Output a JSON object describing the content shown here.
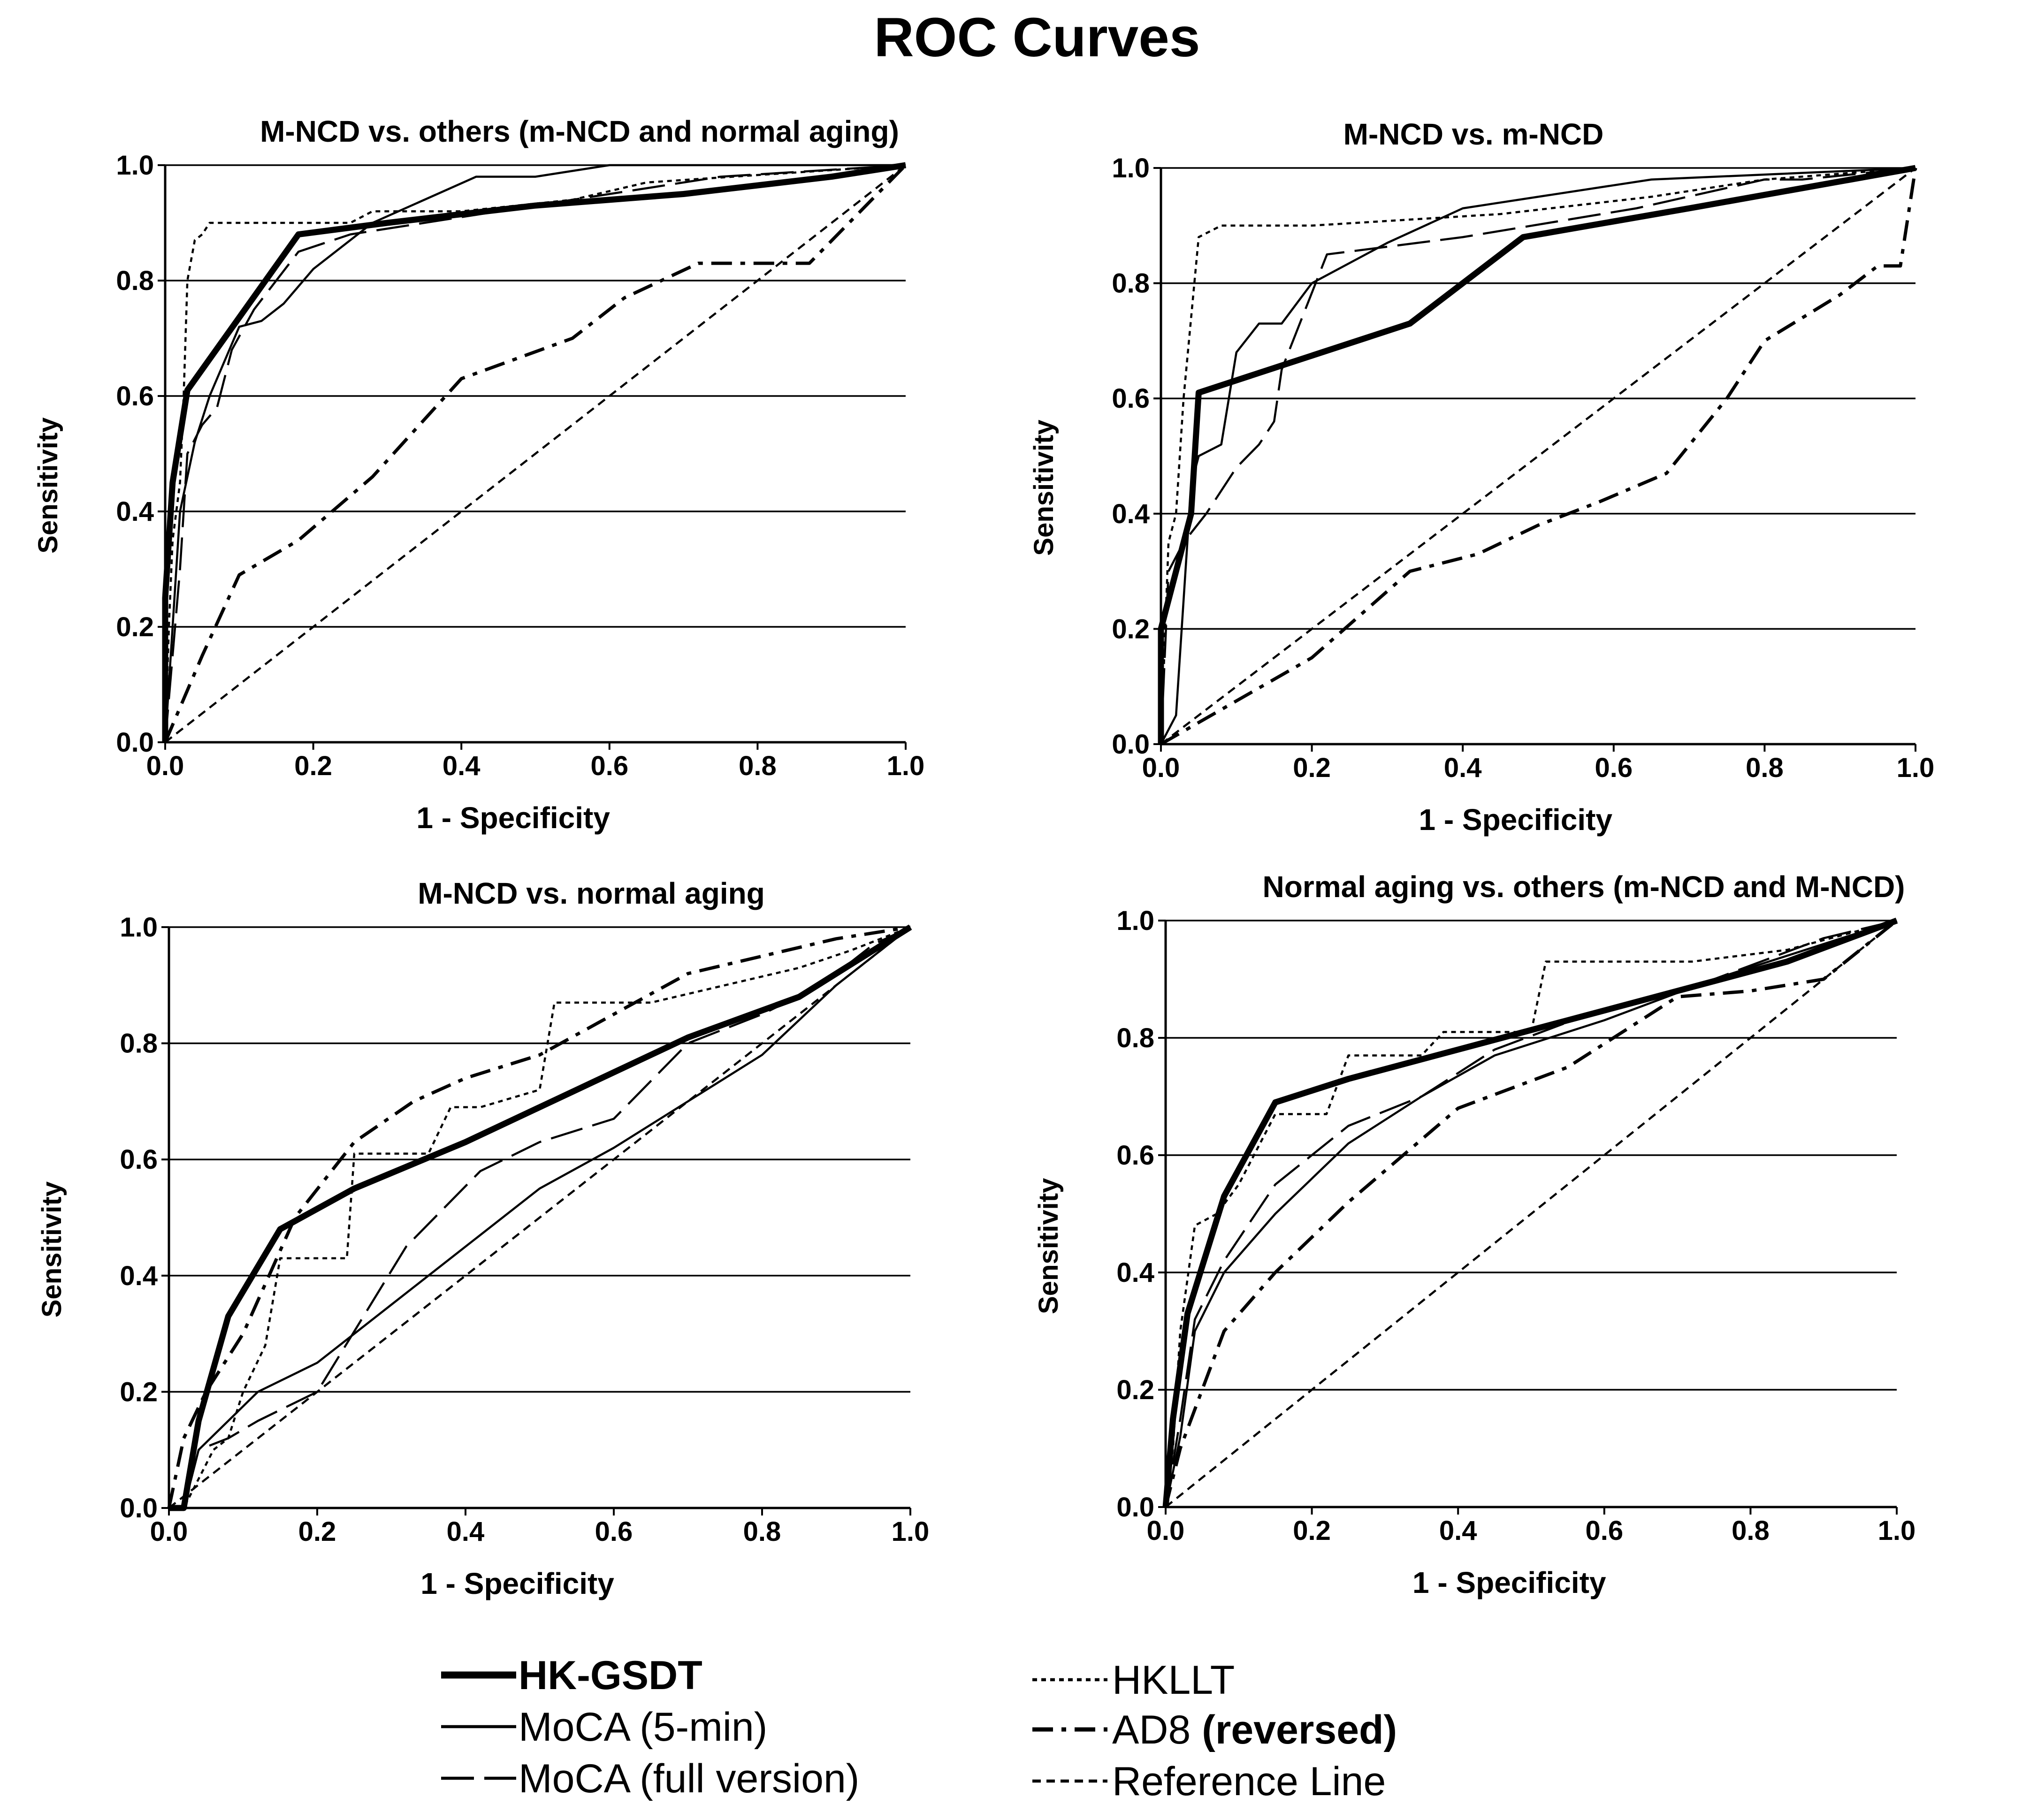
{
  "chart_data": {
    "type": "line",
    "title": "ROC Curves",
    "series_styles": [
      {
        "name": "HK-GSDT",
        "dash": "none",
        "weight": "thick"
      },
      {
        "name": "MoCA (5-min)",
        "dash": "none",
        "weight": "thin"
      },
      {
        "name": "MoCA (full version)",
        "dash": "long-dash",
        "weight": "thin"
      },
      {
        "name": "HKLLT",
        "dash": "dotted",
        "weight": "thin"
      },
      {
        "name": "AD8 (reversed)",
        "dash": "dash-dot",
        "weight": "medium"
      },
      {
        "name": "Reference Line",
        "dash": "short-dash",
        "weight": "thin"
      }
    ],
    "legend": {
      "position": "bottom",
      "items": [
        {
          "label": "HK-GSDT",
          "suffix": ""
        },
        {
          "label": "MoCA (5-min)",
          "suffix": ""
        },
        {
          "label": "MoCA (full version)",
          "suffix": ""
        },
        {
          "label": "HKLLT",
          "suffix": ""
        },
        {
          "label": "AD8",
          "suffix": "(reversed)"
        },
        {
          "label": "Reference Line",
          "suffix": ""
        }
      ]
    },
    "panels": [
      {
        "title": "M-NCD  vs. others (m-NCD and normal aging)",
        "xlabel": "1 - Specificity",
        "ylabel": "Sensitivity",
        "xlim": [
          0,
          1
        ],
        "ylim": [
          0,
          1
        ],
        "xticks": [
          "0.0",
          "0.2",
          "0.4",
          "0.6",
          "0.8",
          "1.0"
        ],
        "yticks": [
          "0.0",
          "0.2",
          "0.4",
          "0.6",
          "0.8",
          "1.0"
        ],
        "grid": "horizontal",
        "series": [
          {
            "name": "HK-GSDT",
            "x": [
              0,
              0,
              0.01,
              0.03,
              0.08,
              0.18,
              0.3,
              0.5,
              0.7,
              0.9,
              1
            ],
            "y": [
              0,
              0.25,
              0.45,
              0.61,
              0.7,
              0.88,
              0.9,
              0.93,
              0.95,
              0.98,
              1
            ]
          },
          {
            "name": "MoCA (5-min)",
            "x": [
              0,
              0.01,
              0.02,
              0.04,
              0.06,
              0.1,
              0.13,
              0.16,
              0.2,
              0.28,
              0.42,
              0.5,
              0.6,
              0.8,
              1
            ],
            "y": [
              0,
              0.2,
              0.4,
              0.52,
              0.6,
              0.72,
              0.73,
              0.76,
              0.82,
              0.9,
              0.98,
              0.98,
              1,
              1,
              1
            ]
          },
          {
            "name": "MoCA (full version)",
            "x": [
              0,
              0.01,
              0.02,
              0.03,
              0.05,
              0.07,
              0.09,
              0.12,
              0.18,
              0.25,
              0.35,
              0.55,
              0.75,
              1
            ],
            "y": [
              0,
              0.15,
              0.3,
              0.5,
              0.55,
              0.58,
              0.68,
              0.75,
              0.85,
              0.88,
              0.9,
              0.94,
              0.98,
              1
            ]
          },
          {
            "name": "HKLLT",
            "x": [
              0,
              0.005,
              0.01,
              0.02,
              0.025,
              0.03,
              0.04,
              0.05,
              0.06,
              0.08,
              0.25,
              0.28,
              0.4,
              0.55,
              0.65,
              1
            ],
            "y": [
              0,
              0.2,
              0.35,
              0.45,
              0.6,
              0.8,
              0.87,
              0.88,
              0.9,
              0.9,
              0.9,
              0.92,
              0.92,
              0.94,
              0.97,
              1
            ]
          },
          {
            "name": "AD8 (reversed)",
            "x": [
              0,
              0.05,
              0.1,
              0.18,
              0.28,
              0.4,
              0.55,
              0.62,
              0.72,
              0.87,
              1
            ],
            "y": [
              0,
              0.15,
              0.29,
              0.35,
              0.46,
              0.63,
              0.7,
              0.77,
              0.83,
              0.83,
              1
            ]
          },
          {
            "name": "Reference Line",
            "x": [
              0,
              1
            ],
            "y": [
              0,
              1
            ]
          }
        ]
      },
      {
        "title": "M-NCD vs. m-NCD",
        "xlabel": "1 - Specificity",
        "ylabel": "Sensitivity",
        "xlim": [
          0,
          1
        ],
        "ylim": [
          0,
          1
        ],
        "xticks": [
          "0.0",
          "0.2",
          "0.4",
          "0.6",
          "0.8",
          "1.0"
        ],
        "yticks": [
          "0.0",
          "0.2",
          "0.4",
          "0.6",
          "0.8",
          "1.0"
        ],
        "grid": "horizontal",
        "series": [
          {
            "name": "HK-GSDT",
            "x": [
              0,
              0,
              0.02,
              0.04,
              0.05,
              0.33,
              0.48,
              0.7,
              1
            ],
            "y": [
              0,
              0.2,
              0.3,
              0.4,
              0.61,
              0.73,
              0.88,
              0.93,
              1
            ]
          },
          {
            "name": "MoCA (5-min)",
            "x": [
              0,
              0.02,
              0.04,
              0.05,
              0.08,
              0.1,
              0.13,
              0.16,
              0.2,
              0.3,
              0.4,
              0.5,
              0.65,
              1
            ],
            "y": [
              0,
              0.05,
              0.45,
              0.5,
              0.52,
              0.68,
              0.73,
              0.73,
              0.8,
              0.87,
              0.93,
              0.95,
              0.98,
              1
            ]
          },
          {
            "name": "MoCA (full version)",
            "x": [
              0,
              0.01,
              0.03,
              0.06,
              0.1,
              0.13,
              0.15,
              0.16,
              0.22,
              0.4,
              0.63,
              0.8,
              0.85,
              1
            ],
            "y": [
              0,
              0.3,
              0.35,
              0.4,
              0.48,
              0.52,
              0.56,
              0.65,
              0.85,
              0.88,
              0.93,
              0.98,
              0.98,
              1
            ]
          },
          {
            "name": "HKLLT",
            "x": [
              0,
              0.01,
              0.02,
              0.03,
              0.05,
              0.08,
              0.2,
              0.45,
              0.65,
              0.8,
              1
            ],
            "y": [
              0,
              0.35,
              0.4,
              0.6,
              0.88,
              0.9,
              0.9,
              0.92,
              0.95,
              0.98,
              1
            ]
          },
          {
            "name": "AD8 (reversed)",
            "x": [
              0,
              0.08,
              0.2,
              0.33,
              0.42,
              0.5,
              0.58,
              0.67,
              0.75,
              0.8,
              0.9,
              0.95,
              0.98,
              1
            ],
            "y": [
              0,
              0.06,
              0.15,
              0.3,
              0.33,
              0.38,
              0.42,
              0.47,
              0.6,
              0.7,
              0.78,
              0.83,
              0.83,
              1
            ]
          },
          {
            "name": "Reference Line",
            "x": [
              0,
              1
            ],
            "y": [
              0,
              1
            ]
          }
        ]
      },
      {
        "title": "M-NCD  vs. normal aging",
        "xlabel": "1 - Specificity",
        "ylabel": "Sensitivity",
        "xlim": [
          0,
          1
        ],
        "ylim": [
          0,
          1
        ],
        "xticks": [
          "0.0",
          "0.2",
          "0.4",
          "0.6",
          "0.8",
          "1.0"
        ],
        "yticks": [
          "0.0",
          "0.2",
          "0.4",
          "0.6",
          "0.8",
          "1.0"
        ],
        "grid": "horizontal",
        "series": [
          {
            "name": "HK-GSDT",
            "x": [
              0,
              0.02,
              0.04,
              0.08,
              0.15,
              0.25,
              0.4,
              0.55,
              0.7,
              0.85,
              1
            ],
            "y": [
              0,
              0,
              0.15,
              0.33,
              0.48,
              0.55,
              0.63,
              0.72,
              0.81,
              0.88,
              1
            ]
          },
          {
            "name": "MoCA (5-min)",
            "x": [
              0,
              0.02,
              0.04,
              0.08,
              0.12,
              0.2,
              0.3,
              0.4,
              0.5,
              0.6,
              0.7,
              0.8,
              0.9,
              1
            ],
            "y": [
              0,
              0,
              0.1,
              0.15,
              0.2,
              0.25,
              0.35,
              0.45,
              0.55,
              0.62,
              0.7,
              0.78,
              0.9,
              1
            ]
          },
          {
            "name": "MoCA (full version)",
            "x": [
              0,
              0.02,
              0.04,
              0.08,
              0.12,
              0.2,
              0.32,
              0.42,
              0.5,
              0.6,
              0.7,
              0.8,
              0.88,
              0.95,
              1
            ],
            "y": [
              0,
              0,
              0.1,
              0.12,
              0.15,
              0.2,
              0.45,
              0.58,
              0.63,
              0.67,
              0.8,
              0.85,
              0.9,
              0.97,
              1
            ]
          },
          {
            "name": "HKLLT",
            "x": [
              0,
              0.02,
              0.06,
              0.08,
              0.1,
              0.13,
              0.15,
              0.2,
              0.24,
              0.25,
              0.35,
              0.38,
              0.42,
              0.5,
              0.52,
              0.65,
              0.75,
              0.85,
              0.92,
              1
            ],
            "y": [
              0,
              0,
              0.1,
              0.12,
              0.2,
              0.28,
              0.43,
              0.43,
              0.43,
              0.61,
              0.61,
              0.69,
              0.69,
              0.72,
              0.87,
              0.87,
              0.9,
              0.93,
              0.96,
              1
            ]
          },
          {
            "name": "AD8 (reversed)",
            "x": [
              0,
              0.02,
              0.05,
              0.1,
              0.17,
              0.25,
              0.33,
              0.4,
              0.5,
              0.6,
              0.7,
              0.8,
              0.9,
              1
            ],
            "y": [
              0,
              0.12,
              0.2,
              0.3,
              0.5,
              0.63,
              0.7,
              0.74,
              0.78,
              0.85,
              0.92,
              0.95,
              0.98,
              1
            ]
          },
          {
            "name": "Reference Line",
            "x": [
              0,
              1
            ],
            "y": [
              0,
              1
            ]
          }
        ]
      },
      {
        "title": "Normal aging vs. others (m-NCD and M-NCD)",
        "xlabel": "1 - Specificity",
        "ylabel": "Sensitivity",
        "xlim": [
          0,
          1
        ],
        "ylim": [
          0,
          1
        ],
        "xticks": [
          "0.0",
          "0.2",
          "0.4",
          "0.6",
          "0.8",
          "1.0"
        ],
        "yticks": [
          "0.0",
          "0.2",
          "0.4",
          "0.6",
          "0.8",
          "1.0"
        ],
        "grid": "horizontal",
        "series": [
          {
            "name": "HK-GSDT",
            "x": [
              0,
              0.01,
              0.03,
              0.08,
              0.15,
              0.25,
              0.4,
              0.55,
              0.7,
              0.85,
              1
            ],
            "y": [
              0,
              0.15,
              0.33,
              0.53,
              0.69,
              0.73,
              0.78,
              0.83,
              0.88,
              0.93,
              1
            ]
          },
          {
            "name": "MoCA (5-min)",
            "x": [
              0,
              0.02,
              0.04,
              0.08,
              0.15,
              0.25,
              0.35,
              0.45,
              0.6,
              0.75,
              0.9,
              1
            ],
            "y": [
              0,
              0.12,
              0.3,
              0.4,
              0.5,
              0.62,
              0.7,
              0.77,
              0.83,
              0.9,
              0.96,
              1
            ]
          },
          {
            "name": "MoCA (full version)",
            "x": [
              0,
              0.02,
              0.04,
              0.08,
              0.15,
              0.25,
              0.35,
              0.45,
              0.6,
              0.75,
              0.9,
              1
            ],
            "y": [
              0,
              0.15,
              0.32,
              0.42,
              0.55,
              0.65,
              0.7,
              0.78,
              0.85,
              0.9,
              0.97,
              1
            ]
          },
          {
            "name": "HKLLT",
            "x": [
              0,
              0.01,
              0.02,
              0.04,
              0.07,
              0.1,
              0.15,
              0.22,
              0.25,
              0.32,
              0.35,
              0.38,
              0.5,
              0.52,
              0.65,
              0.72,
              0.85,
              1
            ],
            "y": [
              0,
              0.1,
              0.3,
              0.48,
              0.5,
              0.55,
              0.67,
              0.67,
              0.77,
              0.77,
              0.77,
              0.81,
              0.81,
              0.93,
              0.93,
              0.93,
              0.95,
              1
            ]
          },
          {
            "name": "AD8 (reversed)",
            "x": [
              0,
              0.02,
              0.05,
              0.08,
              0.15,
              0.25,
              0.4,
              0.55,
              0.7,
              0.8,
              0.9,
              1
            ],
            "y": [
              0,
              0.1,
              0.2,
              0.3,
              0.4,
              0.52,
              0.68,
              0.75,
              0.87,
              0.88,
              0.9,
              1
            ]
          },
          {
            "name": "Reference Line",
            "x": [
              0,
              1
            ],
            "y": [
              0,
              1
            ]
          }
        ]
      }
    ]
  }
}
